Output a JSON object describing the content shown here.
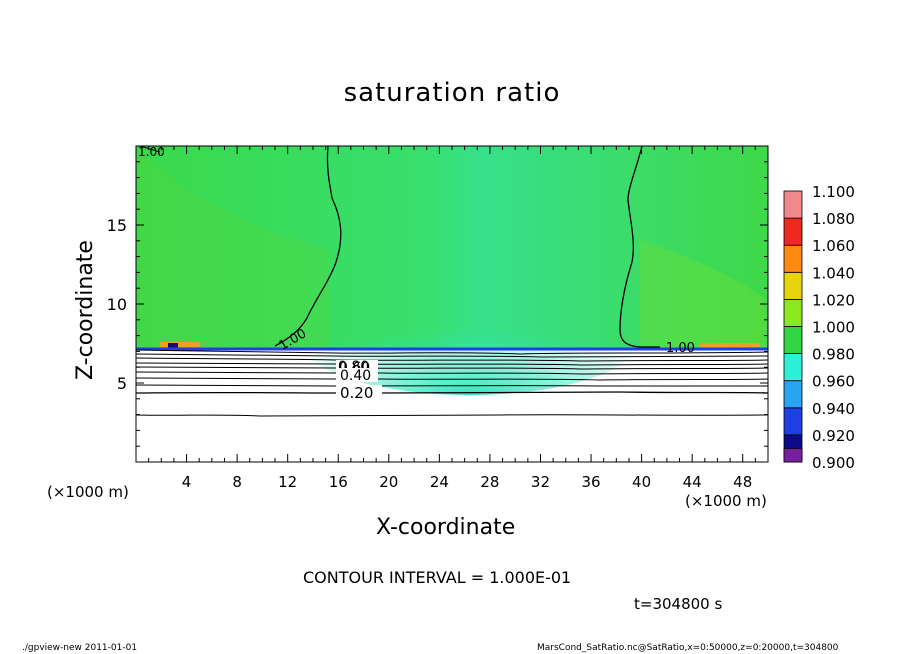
{
  "chart_data": {
    "type": "heatmap",
    "title": "saturation ratio",
    "xlabel": "X-coordinate",
    "ylabel": "Z-coordinate",
    "x_unit": "(×1000 m)",
    "xlim": [
      0,
      50
    ],
    "ylim": [
      0,
      20
    ],
    "x_ticks": [
      "4",
      "8",
      "12",
      "16",
      "20",
      "24",
      "28",
      "32",
      "36",
      "40",
      "44",
      "48"
    ],
    "y_ticks": [
      "5",
      "10",
      "15"
    ],
    "colorbar": {
      "levels": [
        0.9,
        0.92,
        0.94,
        0.96,
        0.98,
        1.0,
        1.02,
        1.04,
        1.06,
        1.08,
        1.1
      ],
      "labels": [
        "0.900",
        "0.920",
        "0.940",
        "0.960",
        "0.980",
        "1.000",
        "1.020",
        "1.040",
        "1.060",
        "1.080",
        "1.100"
      ],
      "colors": [
        "#7b1fa2",
        "#0b0b8c",
        "#1f3fe6",
        "#28a4f0",
        "#2ef0d8",
        "#33d642",
        "#8ee81f",
        "#e8d40c",
        "#ff8a10",
        "#ee2a1e",
        "#f08a8a"
      ]
    },
    "contour_labels": [
      "1.00",
      "1.00",
      "0.80",
      "0.60",
      "0.40",
      "0.20",
      "1.00"
    ],
    "annotations": {
      "contour_interval": "CONTOUR INTERVAL = 1.000E-01",
      "time": "t=304800 s"
    }
  },
  "footer": {
    "left": "./gpview-new   2011-01-01",
    "right": "MarsCond_SatRatio.nc@SatRatio,x=0:50000,z=0:20000,t=304800"
  }
}
